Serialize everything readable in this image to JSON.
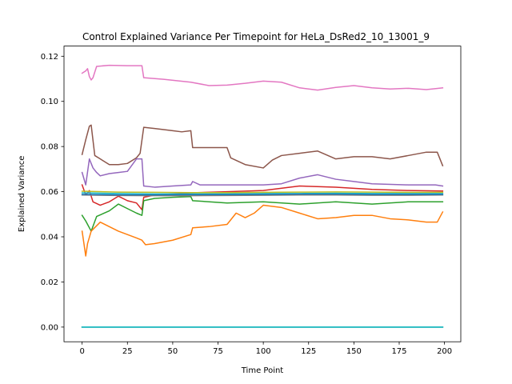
{
  "chart_data": {
    "type": "line",
    "title": "Control Explained Variance Per Timepoint for HeLa_DsRed2_10_13001_9",
    "xlabel": "Time Point",
    "ylabel": "Explained Variance",
    "xlim": [
      -10,
      209
    ],
    "ylim": [
      -0.0065,
      0.1245
    ],
    "xticks": [
      0,
      25,
      50,
      75,
      100,
      125,
      150,
      175,
      200
    ],
    "xtick_labels": [
      "0",
      "25",
      "50",
      "75",
      "100",
      "125",
      "150",
      "175",
      "200"
    ],
    "yticks": [
      0.0,
      0.02,
      0.04,
      0.06,
      0.08,
      0.1,
      0.12
    ],
    "ytick_labels": [
      "0.00",
      "0.02",
      "0.04",
      "0.06",
      "0.08",
      "0.10",
      "0.12"
    ],
    "grid": false,
    "legend": "none",
    "series": [
      {
        "color": "#e377c2",
        "points": [
          [
            0,
            0.1125
          ],
          [
            2,
            0.1135
          ],
          [
            3,
            0.1145
          ],
          [
            4,
            0.111
          ],
          [
            5,
            0.1095
          ],
          [
            6,
            0.1105
          ],
          [
            8,
            0.1155
          ],
          [
            15,
            0.116
          ],
          [
            25,
            0.1158
          ],
          [
            33,
            0.1158
          ],
          [
            34,
            0.1105
          ],
          [
            45,
            0.1098
          ],
          [
            60,
            0.1085
          ],
          [
            70,
            0.107
          ],
          [
            80,
            0.1072
          ],
          [
            90,
            0.108
          ],
          [
            100,
            0.109
          ],
          [
            110,
            0.1085
          ],
          [
            120,
            0.106
          ],
          [
            130,
            0.105
          ],
          [
            140,
            0.1062
          ],
          [
            150,
            0.107
          ],
          [
            160,
            0.106
          ],
          [
            170,
            0.1055
          ],
          [
            180,
            0.1058
          ],
          [
            190,
            0.1052
          ],
          [
            199,
            0.106
          ]
        ]
      },
      {
        "color": "#8c564b",
        "points": [
          [
            0,
            0.0765
          ],
          [
            2,
            0.083
          ],
          [
            4,
            0.089
          ],
          [
            5,
            0.0895
          ],
          [
            7,
            0.076
          ],
          [
            10,
            0.0745
          ],
          [
            15,
            0.072
          ],
          [
            20,
            0.072
          ],
          [
            25,
            0.0725
          ],
          [
            30,
            0.075
          ],
          [
            32,
            0.077
          ],
          [
            34,
            0.0885
          ],
          [
            40,
            0.088
          ],
          [
            50,
            0.087
          ],
          [
            55,
            0.0865
          ],
          [
            60,
            0.087
          ],
          [
            61,
            0.0795
          ],
          [
            70,
            0.0795
          ],
          [
            80,
            0.0795
          ],
          [
            82,
            0.075
          ],
          [
            90,
            0.072
          ],
          [
            100,
            0.0705
          ],
          [
            105,
            0.074
          ],
          [
            110,
            0.076
          ],
          [
            120,
            0.077
          ],
          [
            130,
            0.078
          ],
          [
            140,
            0.0745
          ],
          [
            150,
            0.0755
          ],
          [
            160,
            0.0755
          ],
          [
            170,
            0.0745
          ],
          [
            180,
            0.076
          ],
          [
            190,
            0.0775
          ],
          [
            196,
            0.0775
          ],
          [
            199,
            0.0715
          ]
        ]
      },
      {
        "color": "#9467bd",
        "points": [
          [
            0,
            0.0685
          ],
          [
            2,
            0.063
          ],
          [
            4,
            0.0745
          ],
          [
            6,
            0.0705
          ],
          [
            8,
            0.0685
          ],
          [
            10,
            0.067
          ],
          [
            15,
            0.068
          ],
          [
            20,
            0.0685
          ],
          [
            25,
            0.069
          ],
          [
            30,
            0.0745
          ],
          [
            33,
            0.0745
          ],
          [
            34,
            0.0625
          ],
          [
            40,
            0.062
          ],
          [
            50,
            0.0625
          ],
          [
            60,
            0.063
          ],
          [
            61,
            0.0645
          ],
          [
            65,
            0.063
          ],
          [
            80,
            0.063
          ],
          [
            100,
            0.063
          ],
          [
            110,
            0.0635
          ],
          [
            120,
            0.066
          ],
          [
            130,
            0.0675
          ],
          [
            140,
            0.0655
          ],
          [
            150,
            0.0645
          ],
          [
            160,
            0.0635
          ],
          [
            180,
            0.063
          ],
          [
            195,
            0.063
          ],
          [
            199,
            0.0625
          ]
        ]
      },
      {
        "color": "#d62728",
        "points": [
          [
            0,
            0.063
          ],
          [
            2,
            0.0585
          ],
          [
            4,
            0.0605
          ],
          [
            6,
            0.0555
          ],
          [
            10,
            0.054
          ],
          [
            15,
            0.0555
          ],
          [
            20,
            0.058
          ],
          [
            25,
            0.056
          ],
          [
            30,
            0.055
          ],
          [
            33,
            0.052
          ],
          [
            34,
            0.0575
          ],
          [
            40,
            0.0585
          ],
          [
            60,
            0.0595
          ],
          [
            80,
            0.06
          ],
          [
            100,
            0.0605
          ],
          [
            120,
            0.0625
          ],
          [
            140,
            0.062
          ],
          [
            160,
            0.061
          ],
          [
            180,
            0.0605
          ],
          [
            199,
            0.0603
          ]
        ]
      },
      {
        "color": "#2ca02c",
        "points": [
          [
            0,
            0.0495
          ],
          [
            2,
            0.047
          ],
          [
            5,
            0.0425
          ],
          [
            8,
            0.049
          ],
          [
            15,
            0.0515
          ],
          [
            20,
            0.0545
          ],
          [
            25,
            0.0525
          ],
          [
            30,
            0.0505
          ],
          [
            33,
            0.0495
          ],
          [
            34,
            0.056
          ],
          [
            40,
            0.057
          ],
          [
            50,
            0.0575
          ],
          [
            60,
            0.0578
          ],
          [
            61,
            0.056
          ],
          [
            80,
            0.055
          ],
          [
            100,
            0.0555
          ],
          [
            120,
            0.0545
          ],
          [
            140,
            0.0555
          ],
          [
            160,
            0.0545
          ],
          [
            180,
            0.0555
          ],
          [
            199,
            0.0555
          ]
        ]
      },
      {
        "color": "#ff7f0e",
        "points": [
          [
            0,
            0.0425
          ],
          [
            2,
            0.0315
          ],
          [
            3,
            0.037
          ],
          [
            5,
            0.0425
          ],
          [
            10,
            0.0465
          ],
          [
            15,
            0.0445
          ],
          [
            20,
            0.0425
          ],
          [
            25,
            0.041
          ],
          [
            30,
            0.0395
          ],
          [
            33,
            0.0385
          ],
          [
            35,
            0.0365
          ],
          [
            40,
            0.037
          ],
          [
            50,
            0.0385
          ],
          [
            60,
            0.041
          ],
          [
            61,
            0.044
          ],
          [
            70,
            0.0445
          ],
          [
            80,
            0.0455
          ],
          [
            85,
            0.0505
          ],
          [
            90,
            0.0485
          ],
          [
            95,
            0.0505
          ],
          [
            100,
            0.054
          ],
          [
            110,
            0.053
          ],
          [
            120,
            0.0505
          ],
          [
            130,
            0.048
          ],
          [
            140,
            0.0485
          ],
          [
            150,
            0.0495
          ],
          [
            160,
            0.0495
          ],
          [
            170,
            0.048
          ],
          [
            180,
            0.0475
          ],
          [
            190,
            0.0465
          ],
          [
            196,
            0.0465
          ],
          [
            198,
            0.0495
          ],
          [
            199,
            0.051
          ]
        ]
      },
      {
        "color": "#17becf",
        "points": [
          [
            0,
            0.0595
          ],
          [
            20,
            0.0592
          ],
          [
            40,
            0.059
          ],
          [
            60,
            0.059
          ],
          [
            80,
            0.059
          ],
          [
            100,
            0.0592
          ],
          [
            120,
            0.0592
          ],
          [
            140,
            0.0593
          ],
          [
            160,
            0.0592
          ],
          [
            180,
            0.0592
          ],
          [
            199,
            0.0592
          ]
        ]
      },
      {
        "color": "#bcbd22",
        "points": [
          [
            0,
            0.0602
          ],
          [
            20,
            0.0598
          ],
          [
            40,
            0.0597
          ],
          [
            60,
            0.0596
          ],
          [
            80,
            0.0596
          ],
          [
            100,
            0.0597
          ],
          [
            120,
            0.0598
          ],
          [
            140,
            0.0599
          ],
          [
            160,
            0.0598
          ],
          [
            180,
            0.0597
          ],
          [
            199,
            0.0597
          ]
        ]
      },
      {
        "color": "#7f7f7f",
        "points": [
          [
            0,
            0.0585
          ],
          [
            20,
            0.0583
          ],
          [
            40,
            0.0582
          ],
          [
            60,
            0.0582
          ],
          [
            80,
            0.0583
          ],
          [
            100,
            0.0584
          ],
          [
            120,
            0.0585
          ],
          [
            140,
            0.0585
          ],
          [
            160,
            0.0584
          ],
          [
            180,
            0.0584
          ],
          [
            199,
            0.0585
          ]
        ]
      },
      {
        "color": "#1f77b4",
        "points": [
          [
            0,
            0.0588
          ],
          [
            20,
            0.0586
          ],
          [
            40,
            0.0586
          ],
          [
            60,
            0.0587
          ],
          [
            80,
            0.0587
          ],
          [
            100,
            0.0588
          ],
          [
            120,
            0.0589
          ],
          [
            140,
            0.0589
          ],
          [
            160,
            0.0588
          ],
          [
            180,
            0.0588
          ],
          [
            199,
            0.0588
          ]
        ]
      },
      {
        "color": "#1f77b4",
        "points": [
          [
            0,
            0.0
          ],
          [
            199,
            0.0
          ]
        ]
      },
      {
        "color": "#2ca02c",
        "points": [
          [
            0,
            0.0
          ],
          [
            199,
            0.0
          ]
        ]
      },
      {
        "color": "#17becf",
        "points": [
          [
            0,
            0.0
          ],
          [
            199,
            0.0
          ]
        ]
      }
    ]
  }
}
